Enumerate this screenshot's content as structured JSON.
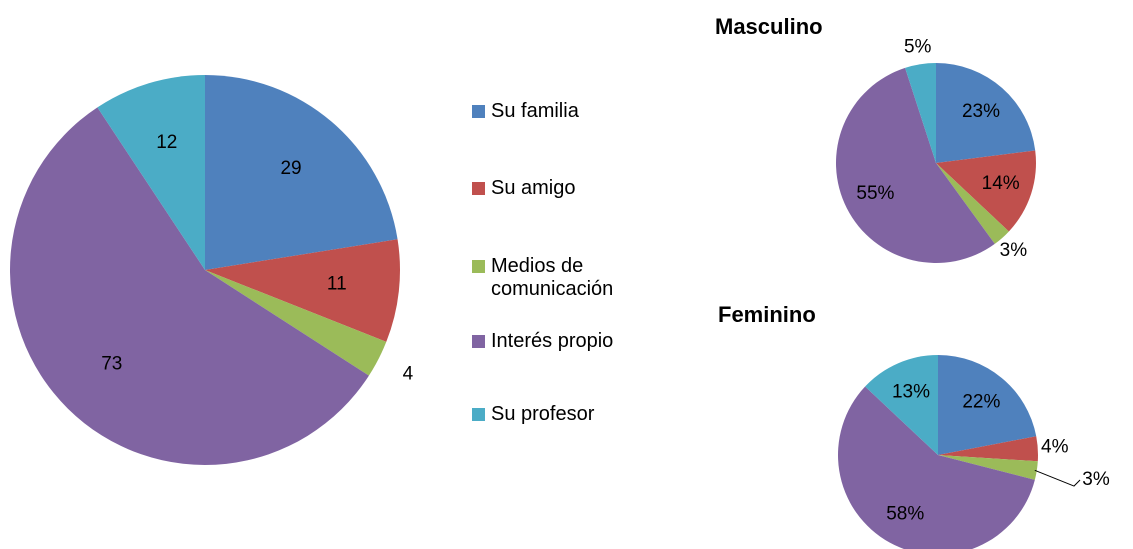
{
  "chart_data": [
    {
      "type": "pie",
      "categories": [
        "Su familia",
        "Su amigo",
        "Medios de comunicación",
        "Interés propio",
        "Su profesor"
      ],
      "values": [
        29,
        11,
        4,
        73,
        12
      ],
      "colors": [
        "#4f81bd",
        "#c0504d",
        "#9bbb59",
        "#8064a2",
        "#4bacc6"
      ]
    },
    {
      "type": "pie",
      "title": "Masculino",
      "values": [
        23,
        14,
        3,
        55,
        5
      ],
      "value_labels": [
        "23%",
        "14%",
        "3%",
        "55%",
        "5%"
      ],
      "colors": [
        "#4f81bd",
        "#c0504d",
        "#9bbb59",
        "#8064a2",
        "#4bacc6"
      ]
    },
    {
      "type": "pie",
      "title": "Feminino",
      "values": [
        22,
        4,
        3,
        58,
        13
      ],
      "value_labels": [
        "22%",
        "4%",
        "3%",
        "58%",
        "13%"
      ],
      "colors": [
        "#4f81bd",
        "#c0504d",
        "#9bbb59",
        "#8064a2",
        "#4bacc6"
      ]
    }
  ]
}
